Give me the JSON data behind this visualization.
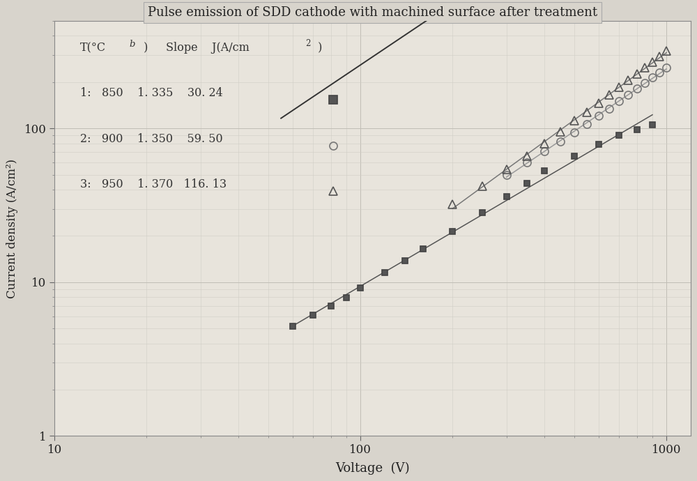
{
  "title": "Pulse emission of SDD cathode with machined surface after treatment",
  "xlabel": "Voltage  (V)",
  "ylabel": "Current density (A/cm²)",
  "xlim": [
    10,
    1200
  ],
  "ylim": [
    1,
    500
  ],
  "background_color": "#d8d4cc",
  "plot_bg_color": "#e8e4dc",
  "grid_major_color": "#c0bdb5",
  "grid_minor_color": "#d0cdc5",
  "series": [
    {
      "label": "1",
      "temp": 850,
      "slope": 1.335,
      "J": 30.24,
      "marker": "s",
      "mfc": "#555555",
      "mec": "#444444",
      "markersize": 6,
      "x_data": [
        60,
        70,
        80,
        90,
        100,
        120,
        140,
        160,
        200,
        250,
        300,
        350,
        400,
        500,
        600,
        700,
        800,
        900
      ],
      "y_data": [
        5.2,
        6.1,
        7.0,
        7.9,
        9.2,
        11.5,
        13.8,
        16.5,
        21.5,
        28.5,
        36.0,
        44.0,
        53.0,
        66.0,
        79.0,
        90.0,
        98.0,
        106.0
      ]
    },
    {
      "label": "2",
      "temp": 900,
      "slope": 1.35,
      "J": 59.5,
      "marker": "o",
      "mfc": "none",
      "mec": "#777777",
      "markersize": 8,
      "x_data": [
        300,
        350,
        400,
        450,
        500,
        550,
        600,
        650,
        700,
        750,
        800,
        850,
        900,
        950,
        1000
      ],
      "y_data": [
        50.0,
        60.0,
        71.0,
        82.0,
        94.0,
        107.0,
        121.0,
        135.0,
        150.0,
        165.0,
        181.0,
        197.0,
        214.0,
        231.0,
        248.0
      ]
    },
    {
      "label": "3",
      "temp": 950,
      "slope": 1.37,
      "J": 116.13,
      "marker": "^",
      "mfc": "none",
      "mec": "#555555",
      "markersize": 8,
      "x_data": [
        200,
        250,
        300,
        350,
        400,
        450,
        500,
        550,
        600,
        650,
        700,
        750,
        800,
        850,
        900,
        950,
        1000
      ],
      "y_data": [
        32.0,
        42.0,
        54.0,
        66.0,
        80.0,
        95.0,
        112.0,
        128.0,
        146.0,
        165.0,
        185.0,
        206.0,
        227.0,
        248.0,
        271.0,
        294.0,
        318.0
      ]
    }
  ],
  "fit_line": {
    "x_start": 55,
    "x_end": 1200,
    "slope": 1.335,
    "intercept_log": -0.257,
    "color": "#333333",
    "linewidth": 1.4
  },
  "title_fontsize": 13,
  "axis_fontsize": 13,
  "tick_fontsize": 12
}
